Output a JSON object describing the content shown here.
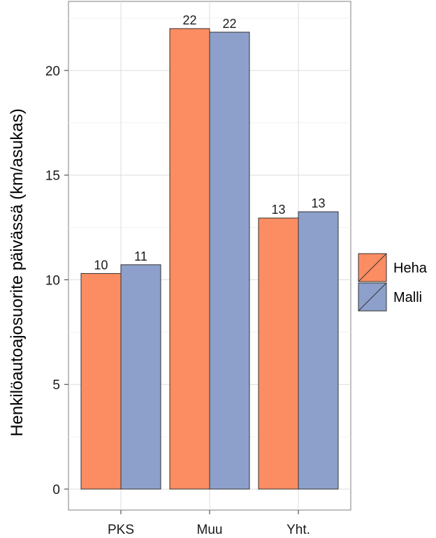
{
  "chart_data": {
    "type": "bar",
    "categories": [
      "PKS",
      "Muu",
      "Yht."
    ],
    "series": [
      {
        "name": "Heha",
        "values": [
          10.3,
          22.0,
          12.95
        ],
        "labels": [
          "10",
          "22",
          "13"
        ],
        "color": "#FC8D62"
      },
      {
        "name": "Malli",
        "values": [
          10.72,
          21.83,
          13.25
        ],
        "labels": [
          "11",
          "22",
          "13"
        ],
        "color": "#8DA0CB"
      }
    ],
    "title": "",
    "xlabel": "",
    "ylabel": "Henkilöautoajosuorite päivässä (km/asukas)",
    "ylim": [
      0,
      23.3
    ],
    "yticks": [
      0,
      5,
      10,
      15,
      20
    ],
    "grid": true,
    "legend_position": "right"
  }
}
